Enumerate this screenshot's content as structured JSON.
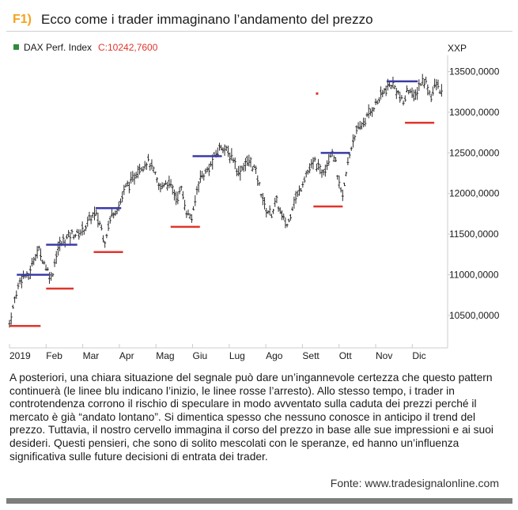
{
  "header": {
    "label": "F1)",
    "title": "Ecco come i trader immaginano l’andamento del prezzo"
  },
  "colors": {
    "label": "#f5a21b",
    "candles": "#2b2b2b",
    "blue_lines": "#3a3aa8",
    "red_lines": "#e0352b",
    "legend_green": "#2e8b3a",
    "close_value": "#e0352b",
    "axis": "#cccccc"
  },
  "chart_data": {
    "type": "line",
    "legend_series": "DAX Perf. Index",
    "legend_close_label": "C:10242,7600",
    "legend_marker_icon": "green-square-icon",
    "y_axis_label": "XXP",
    "y_ticks": [
      "13500,0000",
      "13000,0000",
      "12500,0000",
      "12000,0000",
      "11500,0000",
      "11000,0000",
      "10500,0000"
    ],
    "y_tick_values": [
      13500,
      13000,
      12500,
      12000,
      11500,
      11000,
      10500
    ],
    "ylim": [
      10100,
      13700
    ],
    "x_ticks": [
      "2019",
      "Feb",
      "Mar",
      "Apr",
      "Mag",
      "Giu",
      "Lug",
      "Ago",
      "Sett",
      "Ott",
      "Nov",
      "Dic"
    ],
    "x_tick_months": [
      0,
      1,
      2,
      3,
      4,
      5,
      6,
      7,
      8,
      9,
      10,
      11
    ],
    "xlim": [
      0,
      11.9
    ],
    "series": [
      {
        "x": [
          0.0,
          0.1,
          0.2,
          0.3,
          0.4,
          0.5,
          0.6,
          0.7,
          0.8,
          0.95,
          1.05,
          1.15,
          1.25,
          1.35,
          1.45,
          1.55,
          1.7,
          1.85,
          2.0,
          2.1,
          2.2,
          2.35,
          2.5,
          2.6,
          2.7,
          2.8,
          2.9,
          3.0,
          3.1,
          3.2,
          3.35,
          3.5,
          3.65,
          3.8,
          3.95,
          4.1,
          4.25,
          4.4,
          4.55,
          4.7,
          4.85,
          5.0,
          5.1,
          5.2,
          5.35,
          5.5,
          5.65,
          5.8,
          5.95,
          6.1,
          6.25,
          6.4,
          6.55,
          6.7,
          6.85,
          7.0,
          7.15,
          7.3,
          7.45,
          7.6,
          7.75,
          7.9,
          8.05,
          8.2,
          8.35,
          8.5,
          8.65,
          8.8,
          8.9,
          9.0,
          9.1,
          9.25,
          9.4,
          9.55,
          9.7,
          9.85,
          10.0,
          10.15,
          10.3,
          10.45,
          10.6,
          10.75,
          10.85,
          10.95,
          11.05,
          11.2,
          11.35,
          11.5,
          11.65,
          11.8
        ],
        "y": [
          10400,
          10600,
          10800,
          10950,
          11000,
          10950,
          11100,
          11250,
          11300,
          11150,
          11050,
          10950,
          11200,
          11350,
          11400,
          11450,
          11500,
          11500,
          11550,
          11600,
          11700,
          11750,
          11600,
          11400,
          11600,
          11750,
          11800,
          11850,
          12000,
          12100,
          12150,
          12300,
          12350,
          12400,
          12250,
          12050,
          12150,
          12100,
          11950,
          12050,
          11750,
          11700,
          12000,
          12200,
          12250,
          12350,
          12500,
          12600,
          12500,
          12450,
          12250,
          12350,
          12400,
          12300,
          12050,
          11800,
          11750,
          11900,
          11700,
          11600,
          11900,
          12000,
          12200,
          12300,
          12400,
          12250,
          12350,
          12550,
          12400,
          12100,
          11950,
          12400,
          12700,
          12800,
          12900,
          13000,
          13100,
          13200,
          13300,
          13350,
          13250,
          13100,
          13250,
          13300,
          13150,
          13350,
          13400,
          13200,
          13350,
          13250
        ]
      }
    ],
    "blue_start_lines": [
      {
        "x_start": 0.2,
        "x_end": 1.1,
        "y": 11000
      },
      {
        "x_start": 1.0,
        "x_end": 1.85,
        "y": 11370
      },
      {
        "x_start": 2.35,
        "x_end": 3.05,
        "y": 11820
      },
      {
        "x_start": 5.0,
        "x_end": 5.8,
        "y": 12460
      },
      {
        "x_start": 8.5,
        "x_end": 9.3,
        "y": 12500
      },
      {
        "x_start": 10.3,
        "x_end": 11.15,
        "y": 13380
      }
    ],
    "red_stop_lines": [
      {
        "x_start": 0.0,
        "x_end": 0.85,
        "y": 10370
      },
      {
        "x_start": 1.0,
        "x_end": 1.75,
        "y": 10830
      },
      {
        "x_start": 2.3,
        "x_end": 3.1,
        "y": 11280
      },
      {
        "x_start": 4.4,
        "x_end": 5.2,
        "y": 11590
      },
      {
        "x_start": 8.3,
        "x_end": 9.1,
        "y": 11840
      },
      {
        "x_start": 10.8,
        "x_end": 11.6,
        "y": 12870
      }
    ],
    "marker_dot": {
      "x": 8.4,
      "y": 13230
    }
  },
  "caption": {
    "text": "A posteriori, una chiara situazione del segnale può dare un’ingannevole certezza che questo pattern continuerà (le linee blu indicano l’inizio, le linee rosse l’arresto). Allo stesso tempo, i trader in controtendenza corrono il rischio di speculare in modo avventato sulla caduta dei prezzi perché il mercato è già “andato lontano”. Si dimentica spesso che nessuno conosce in anticipo il trend del prezzo. Tuttavia, il nostro cervello immagina il corso del prezzo in base alle sue impressioni e ai suoi desideri. Questi pensieri, che sono di solito mescolati con le speranze, ed hanno un’influenza significativa sulle future decisioni di entrata dei trader.",
    "source": "Fonte: www.tradesignalonline.com"
  }
}
